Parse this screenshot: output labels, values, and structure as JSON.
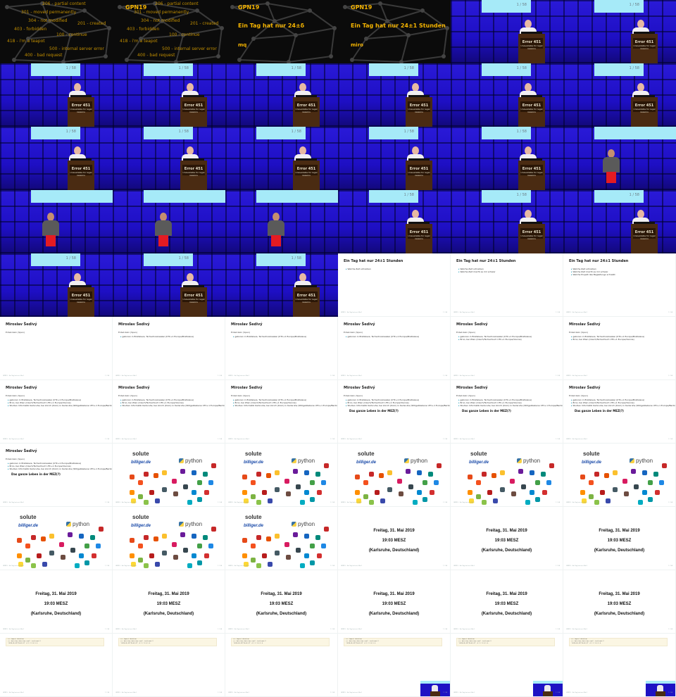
{
  "talk": {
    "event": "GPN19",
    "title_de": "Ein Tag hat nur 24±1 Stunden",
    "title_variant_1": "Ein Tag hat nur 24±δ",
    "speaker_short": "mq",
    "speaker": "miro",
    "http_codes": [
      "206 - partial content",
      "301 - moved permanently",
      "304 - not modified",
      "403 - forbidden",
      "418 - i'm a teapot",
      "100 - continue",
      "500 - internal server error",
      "400 - bad request",
      "201 - created"
    ]
  },
  "stage": {
    "page_counter": "1 / 58",
    "podium_title": "Error 451",
    "podium_subtitle": "Unavailable for legal reasons"
  },
  "slides": {
    "tz_heading": "Ein Tag hat nur 24±1 Stunden",
    "tz_bullets_1": [
      "Welche Zeit schreiben"
    ],
    "tz_bullets_2": [
      "Welche Zeit schreiben",
      "Welche Zeit macht es mir schwer"
    ],
    "tz_bullets_3": [
      "Welche Zeit schreiben",
      "Welche Zeit macht es mir schwer",
      "Welche Projekt das Begleitungs schreibt"
    ],
    "person_heading": "Miroslav Šedivý",
    "person_sub": "Entwickeln (Spen)",
    "person_bullets": [
      "geboren in Bratislava, Tschechoslowakei (UTC+1 Europe/Bratislava)",
      "Brno, bei Wien (Czech/Tschechisch UTC+1 Europe/Vienna)",
      "Studien Informatik Karlsruhe, bei zürich (Dom) in Karlsruhe (Stillgebliebene UTC+1 Europe/Berlin)"
    ],
    "person_big": "Das ganze Leben in der MEZ(?)",
    "company_solute": "solute",
    "company_idealo": "billiger.de",
    "company_python": "python",
    "date_line_1": "Freitag, 31. Mai 2019",
    "date_line_2": "19:03 MESZ",
    "date_line_3": "(Karlsruhe, Deutschland)",
    "code_lines": [
      ">>> import datetime",
      ">>> datetime.datetime.now().isoformat()",
      "'2019-05-31T19:03:27'  # 1 2 3 4 5 6"
    ],
    "footer_left": "GPN19  ·  Ein Tag hat nur 24±1",
    "footer_right": "1 / 58"
  },
  "colors": {
    "gpn_gold": "#f5b400",
    "stage_blue": "#1e12c4",
    "screen_cyan": "#a6eaf8",
    "accent": "#1e9bb8"
  }
}
